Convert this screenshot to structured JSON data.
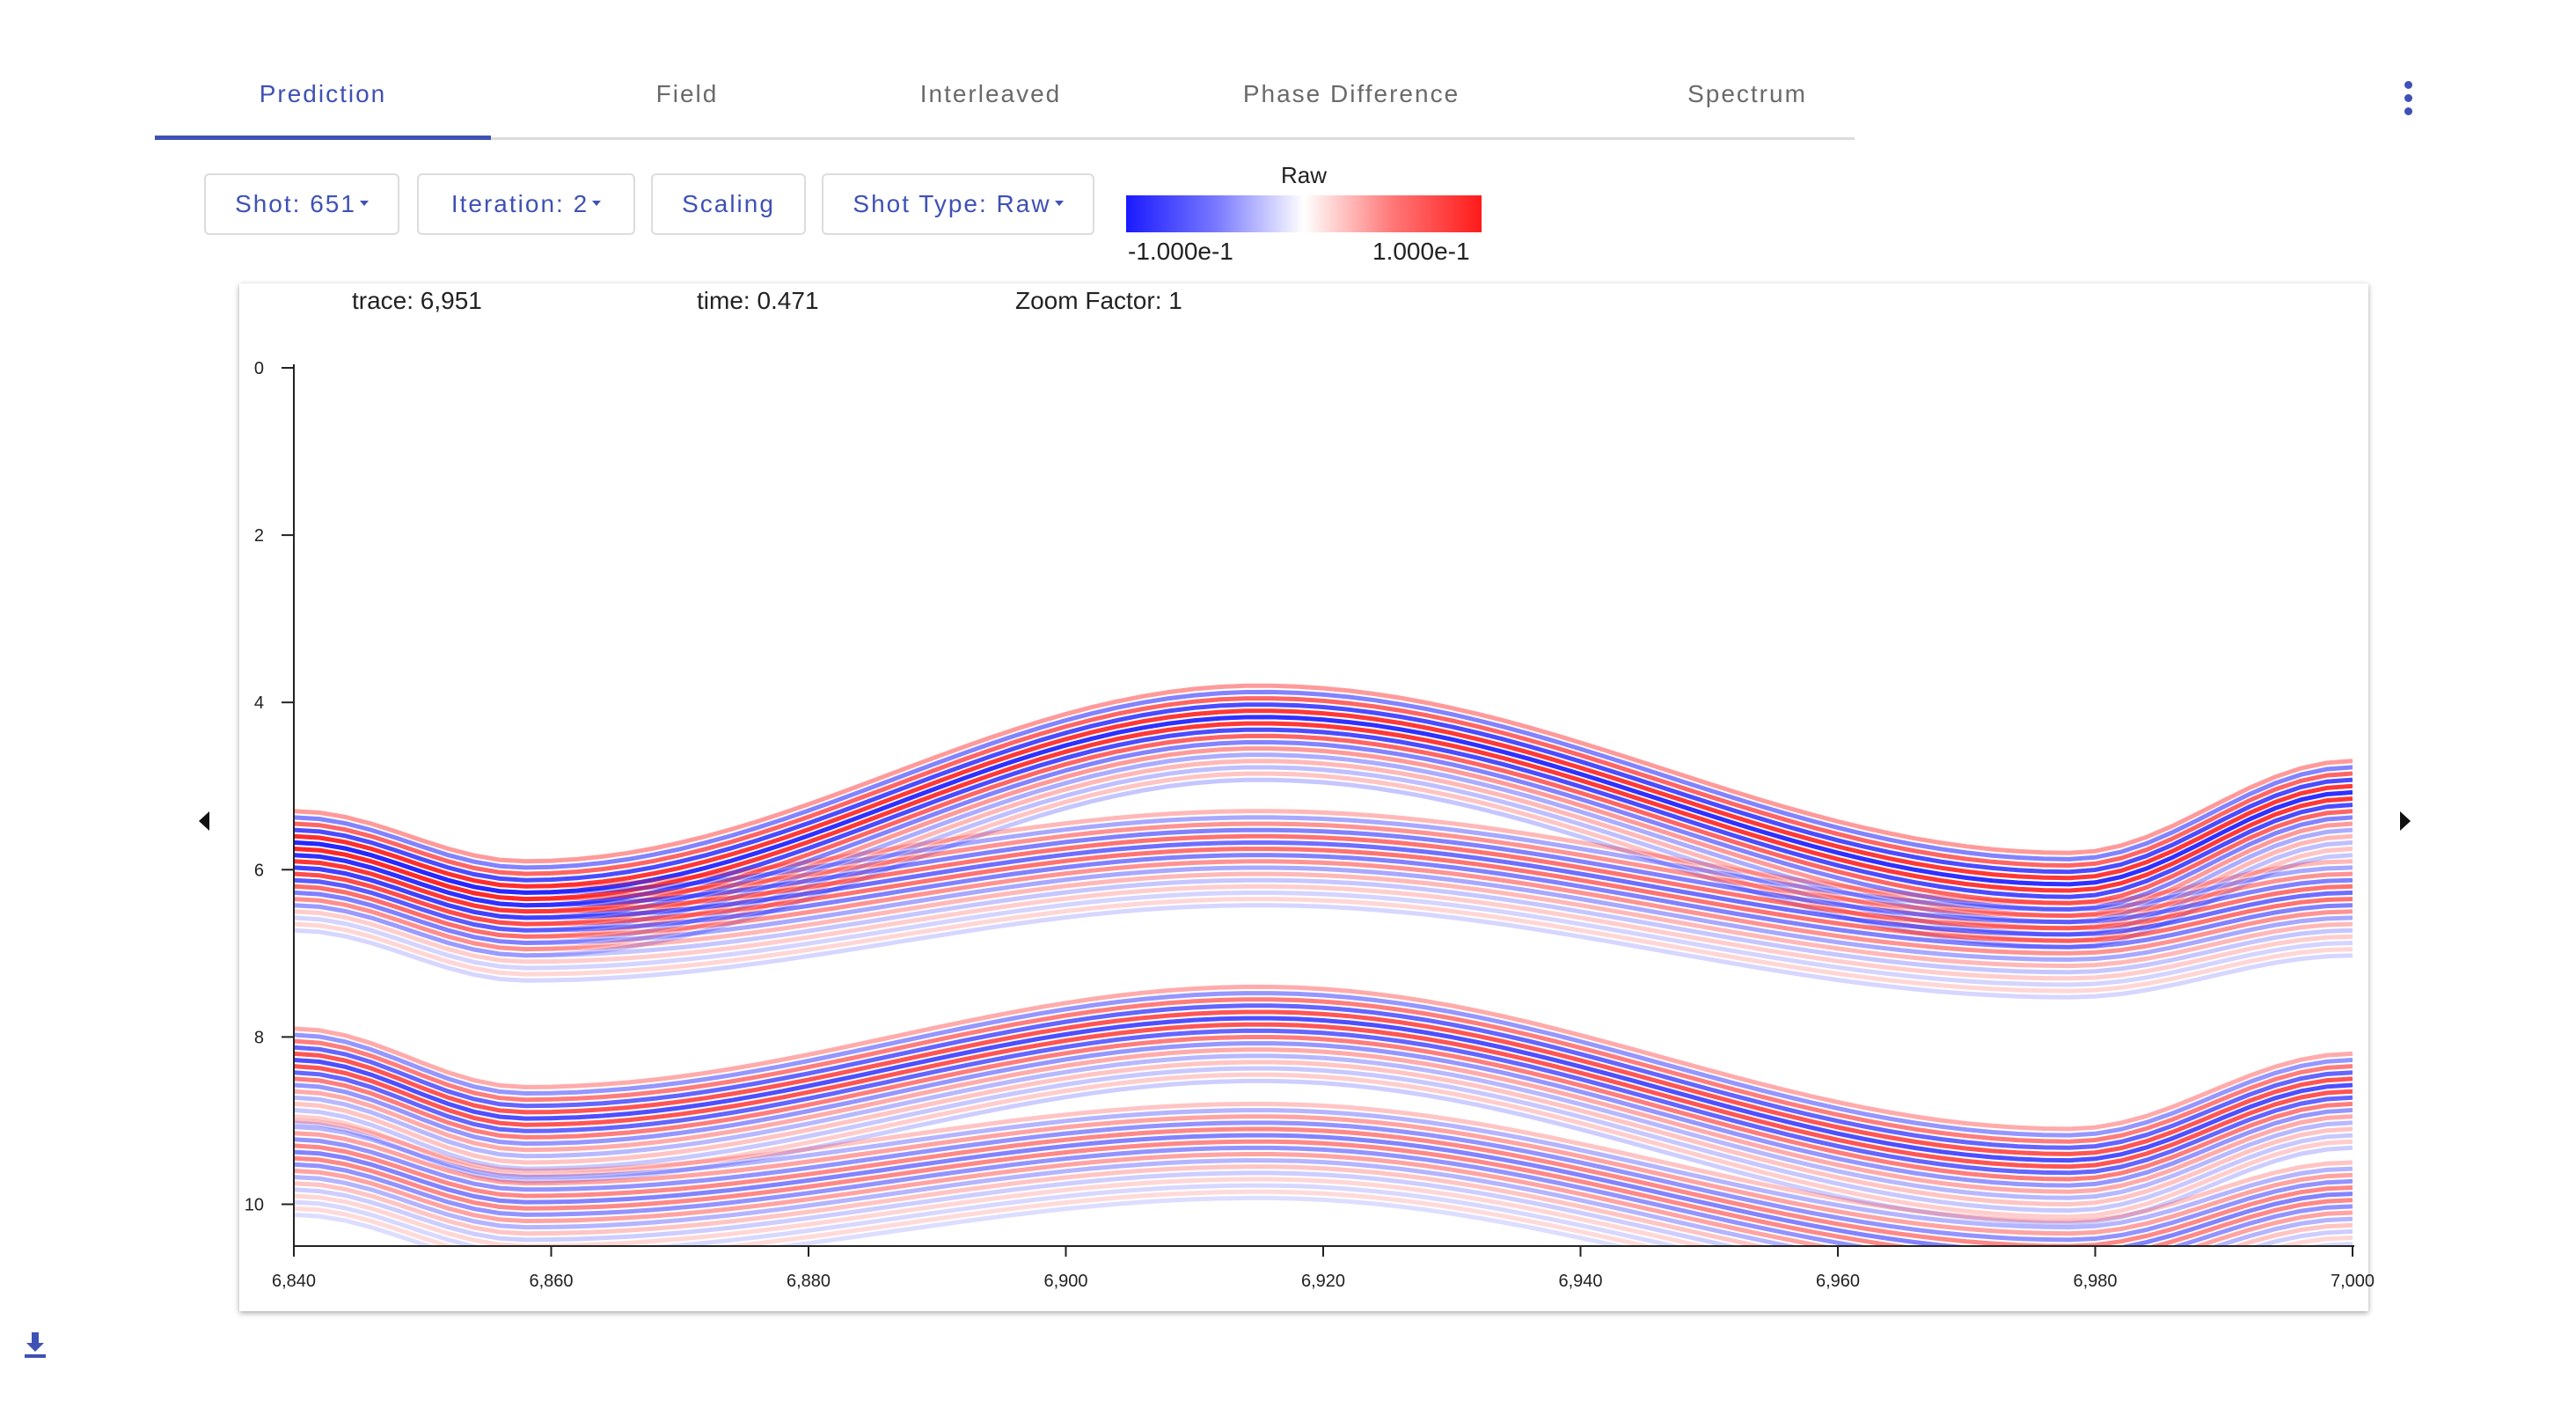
{
  "tabs": [
    {
      "label": "Prediction",
      "active": true
    },
    {
      "label": "Field",
      "active": false
    },
    {
      "label": "Interleaved",
      "active": false
    },
    {
      "label": "Phase Difference",
      "active": false
    },
    {
      "label": "Spectrum",
      "active": false
    }
  ],
  "toolbar": {
    "shot_label": "Shot: 651",
    "iteration_label": "Iteration: 2",
    "scaling_label": "Scaling",
    "shot_type_label": "Shot Type: Raw"
  },
  "colorbar": {
    "title": "Raw",
    "min_label": "-1.000e-1",
    "max_label": "1.000e-1",
    "colors": [
      "#1a1aff",
      "#ffffff",
      "#ff1a1a"
    ]
  },
  "readout": {
    "trace": "trace: 6,951",
    "time": "time: 0.471",
    "zoom": "Zoom Factor: 1"
  },
  "icons": {
    "menu": "more-vertical-icon",
    "prev": "caret-left-icon",
    "next": "caret-right-icon",
    "download": "download-icon"
  },
  "colors": {
    "accent": "#3f51b5",
    "positive": "#ff1a1a",
    "negative": "#1a1aff"
  },
  "chart_data": {
    "type": "heatmap",
    "x_ticks": [
      "6,840",
      "6,860",
      "6,880",
      "6,900",
      "6,920",
      "6,940",
      "6,960",
      "6,980",
      "7,000"
    ],
    "y_ticks": [
      "0",
      "2",
      "4",
      "6",
      "8",
      "10"
    ],
    "xlim": [
      6840,
      7000
    ],
    "ylim": [
      0,
      10.5
    ],
    "grid": false,
    "events": [
      {
        "name": "upper-event",
        "trace": [
          6840,
          6858,
          6915,
          6978,
          7000
        ],
        "time": [
          5.3,
          5.9,
          3.8,
          5.8,
          4.7
        ],
        "strength": 1.0
      },
      {
        "name": "upper-event-2",
        "trace": [
          6840,
          6858,
          6915,
          6978,
          7000
        ],
        "time": [
          5.6,
          6.2,
          5.3,
          6.4,
          5.9
        ],
        "strength": 0.7
      },
      {
        "name": "lower-event",
        "trace": [
          6840,
          6858,
          6915,
          6978,
          7000
        ],
        "time": [
          7.9,
          8.6,
          7.4,
          9.1,
          8.2
        ],
        "strength": 0.85
      },
      {
        "name": "lower-event-2",
        "trace": [
          6840,
          6858,
          6915,
          6978,
          7000
        ],
        "time": [
          9.0,
          9.6,
          8.8,
          10.2,
          9.5
        ],
        "strength": 0.6
      }
    ]
  }
}
